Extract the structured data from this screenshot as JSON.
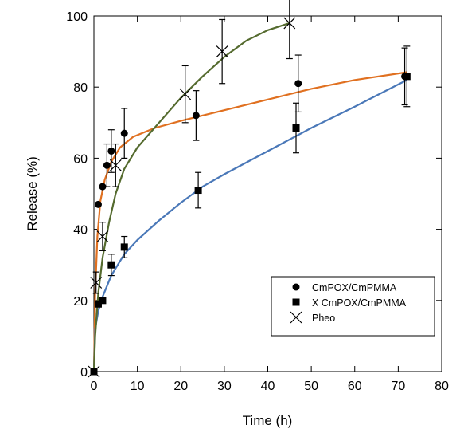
{
  "chart_data": {
    "type": "scatter",
    "xlabel": "Time (h)",
    "ylabel": "Release (%)",
    "xlim": [
      0,
      80
    ],
    "ylim": [
      0,
      100
    ],
    "xticks": [
      0,
      10,
      20,
      30,
      40,
      50,
      60,
      70,
      80
    ],
    "yticks": [
      0,
      20,
      40,
      60,
      80,
      100
    ],
    "grid": false,
    "legend_position": "bottom-right",
    "series": [
      {
        "name": "CmPOX/CmPMMA",
        "marker": "circle",
        "color": "#000000",
        "fit_color": "#e07020",
        "points": [
          {
            "x": 0,
            "y": 0,
            "err": 0
          },
          {
            "x": 1,
            "y": 47,
            "err": 0
          },
          {
            "x": 2,
            "y": 52,
            "err": 0
          },
          {
            "x": 3,
            "y": 58,
            "err": 6
          },
          {
            "x": 4,
            "y": 62,
            "err": 6
          },
          {
            "x": 7,
            "y": 67,
            "err": 7
          },
          {
            "x": 23.5,
            "y": 72,
            "err": 7
          },
          {
            "x": 47,
            "y": 81,
            "err": 8
          },
          {
            "x": 71.5,
            "y": 83,
            "err": 8
          }
        ],
        "fit": [
          [
            0,
            0
          ],
          [
            0.3,
            22
          ],
          [
            0.8,
            38
          ],
          [
            1.5,
            48
          ],
          [
            2.5,
            54
          ],
          [
            4,
            59
          ],
          [
            6,
            63
          ],
          [
            9,
            66
          ],
          [
            14,
            68.5
          ],
          [
            20,
            70.5
          ],
          [
            30,
            73.5
          ],
          [
            40,
            76.5
          ],
          [
            50,
            79.5
          ],
          [
            60,
            82
          ],
          [
            72,
            84.2
          ]
        ]
      },
      {
        "name": "X CmPOX/CmPMMA",
        "marker": "square",
        "color": "#000000",
        "fit_color": "#4a78b8",
        "points": [
          {
            "x": 0,
            "y": 0,
            "err": 0
          },
          {
            "x": 1,
            "y": 19,
            "err": 0
          },
          {
            "x": 2,
            "y": 20,
            "err": 0
          },
          {
            "x": 4,
            "y": 30,
            "err": 3
          },
          {
            "x": 7,
            "y": 35,
            "err": 3
          },
          {
            "x": 24,
            "y": 51,
            "err": 5
          },
          {
            "x": 46.5,
            "y": 68.5,
            "err": 7
          },
          {
            "x": 72,
            "y": 83,
            "err": 8.5
          }
        ],
        "fit": [
          [
            0,
            0
          ],
          [
            0.3,
            12
          ],
          [
            1,
            17
          ],
          [
            2,
            21
          ],
          [
            4,
            27
          ],
          [
            7,
            33
          ],
          [
            10,
            37
          ],
          [
            15,
            42.5
          ],
          [
            20,
            47.5
          ],
          [
            25,
            52
          ],
          [
            30,
            55.5
          ],
          [
            40,
            62
          ],
          [
            50,
            68.5
          ],
          [
            60,
            74.5
          ],
          [
            72,
            82
          ]
        ]
      },
      {
        "name": "Pheo",
        "marker": "x",
        "color": "#000000",
        "fit_color": "#556b2f",
        "points": [
          {
            "x": 0,
            "y": 0,
            "err": 0
          },
          {
            "x": 0.5,
            "y": 25,
            "err": 3
          },
          {
            "x": 2,
            "y": 38,
            "err": 4
          },
          {
            "x": 5,
            "y": 58,
            "err": 6
          },
          {
            "x": 21,
            "y": 78,
            "err": 8
          },
          {
            "x": 29.5,
            "y": 90,
            "err": 9
          },
          {
            "x": 45,
            "y": 98,
            "err": 10
          }
        ],
        "fit": [
          [
            0,
            0
          ],
          [
            0.3,
            10
          ],
          [
            1,
            22
          ],
          [
            2,
            32
          ],
          [
            3.5,
            42
          ],
          [
            5,
            50
          ],
          [
            7,
            57
          ],
          [
            10,
            63
          ],
          [
            15,
            70
          ],
          [
            20,
            77
          ],
          [
            25,
            83
          ],
          [
            30,
            88.5
          ],
          [
            35,
            93
          ],
          [
            40,
            96
          ],
          [
            45,
            98
          ]
        ]
      }
    ]
  }
}
